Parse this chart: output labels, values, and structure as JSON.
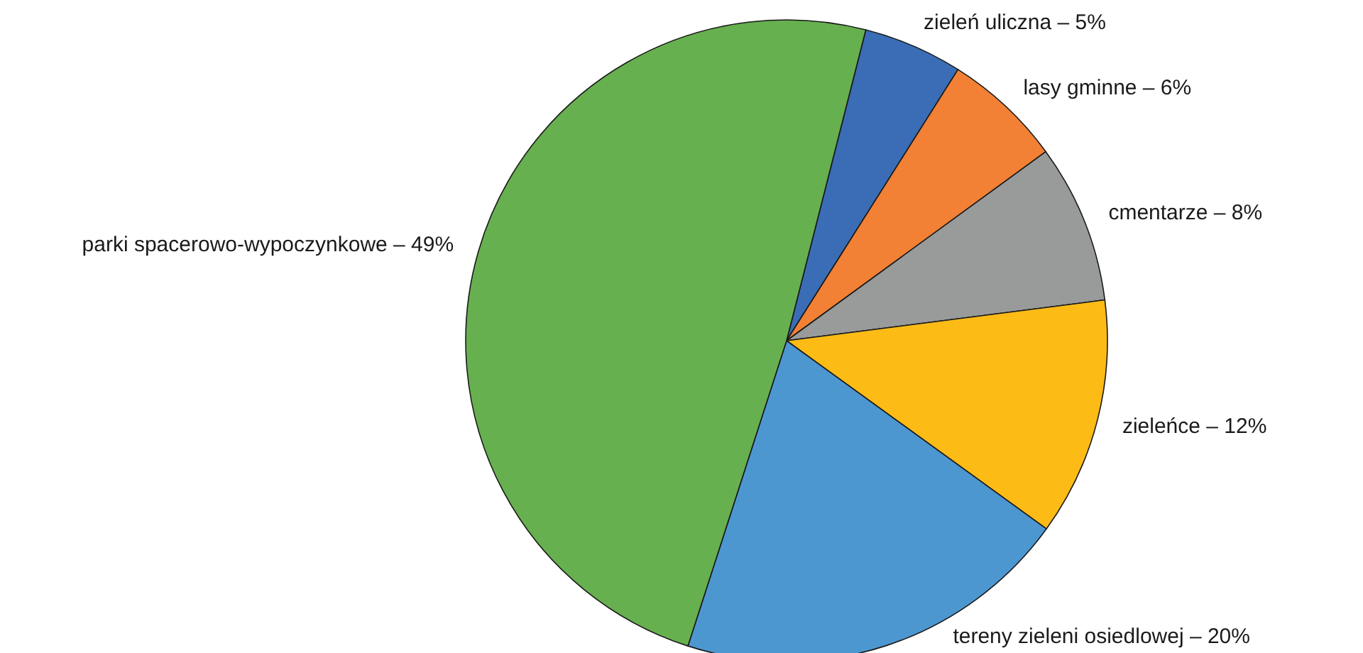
{
  "chart_data": {
    "type": "pie",
    "categories": [
      "zieleń uliczna –",
      "lasy gminne –",
      "cmentarze –",
      "zieleńce –",
      "tereny zieleni osiedlowej –",
      "parki spacerowo-wypoczynkowe –"
    ],
    "values": [
      5,
      6,
      8,
      12,
      20,
      49
    ],
    "value_labels": [
      "5%",
      "6%",
      "8%",
      "12%",
      "20%",
      "49%"
    ],
    "colors": [
      "#3a6db5",
      "#f28135",
      "#999b9b",
      "#fdbb16",
      "#4d97d1",
      "#67b04f"
    ],
    "legend": false
  }
}
